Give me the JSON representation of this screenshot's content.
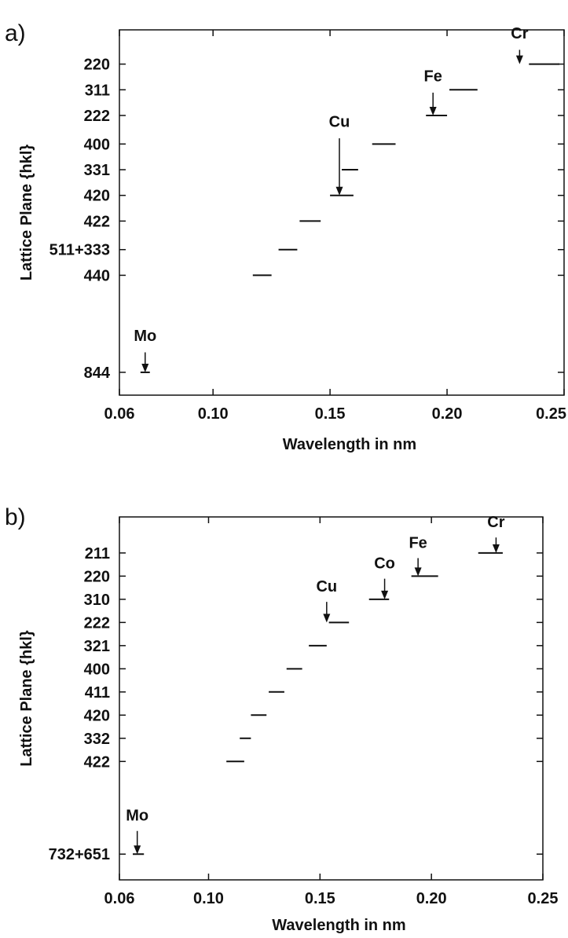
{
  "chart_data": [
    {
      "type": "scatter",
      "panel_label": "a)",
      "xlabel": "Wavelength in nm",
      "ylabel": "Lattice Plane {hkl}",
      "xlim": [
        0.06,
        0.25
      ],
      "x_ticks": [
        {
          "value": 0.06,
          "label": "0.06"
        },
        {
          "value": 0.1,
          "label": "0.10"
        },
        {
          "value": 0.15,
          "label": "0.15"
        },
        {
          "value": 0.2,
          "label": "0.20"
        },
        {
          "value": 0.25,
          "label": "0.25"
        }
      ],
      "ylim": [
        -0.5,
        12.3
      ],
      "planes": [
        {
          "label": "220",
          "y": 11.1
        },
        {
          "label": "311",
          "y": 10.2
        },
        {
          "label": "222",
          "y": 9.3
        },
        {
          "label": "400",
          "y": 8.3
        },
        {
          "label": "331",
          "y": 7.4
        },
        {
          "label": "420",
          "y": 6.5
        },
        {
          "label": "422",
          "y": 5.6
        },
        {
          "label": "511+333",
          "y": 4.6
        },
        {
          "label": "440",
          "y": 3.7
        },
        {
          "label": "844",
          "y": 0.3
        }
      ],
      "segments": [
        {
          "x1": 0.235,
          "x2": 0.248,
          "y": 11.1
        },
        {
          "x1": 0.201,
          "x2": 0.213,
          "y": 10.2
        },
        {
          "x1": 0.191,
          "x2": 0.2,
          "y": 9.3
        },
        {
          "x1": 0.168,
          "x2": 0.178,
          "y": 8.3
        },
        {
          "x1": 0.155,
          "x2": 0.162,
          "y": 7.4
        },
        {
          "x1": 0.15,
          "x2": 0.16,
          "y": 6.5
        },
        {
          "x1": 0.137,
          "x2": 0.146,
          "y": 5.6
        },
        {
          "x1": 0.128,
          "x2": 0.136,
          "y": 4.6
        },
        {
          "x1": 0.117,
          "x2": 0.125,
          "y": 3.7
        },
        {
          "x1": 0.069,
          "x2": 0.073,
          "y": 0.3
        }
      ],
      "annotations": [
        {
          "text": "Cr",
          "x": 0.231,
          "label_y": 12.0,
          "arrow_from": 11.6,
          "arrow_to": 11.1
        },
        {
          "text": "Fe",
          "x": 0.194,
          "label_y": 10.5,
          "arrow_from": 10.1,
          "arrow_to": 9.3
        },
        {
          "text": "Cu",
          "x": 0.154,
          "label_y": 8.9,
          "arrow_from": 8.5,
          "arrow_to": 6.5
        },
        {
          "text": "Mo",
          "x": 0.071,
          "label_y": 1.4,
          "arrow_from": 1.0,
          "arrow_to": 0.3
        }
      ]
    },
    {
      "type": "scatter",
      "panel_label": "b)",
      "xlabel": "Wavelength in nm",
      "ylabel": "Lattice Plane {hkl}",
      "xlim": [
        0.06,
        0.25
      ],
      "x_ticks": [
        {
          "value": 0.06,
          "label": "0.06"
        },
        {
          "value": 0.1,
          "label": "0.10"
        },
        {
          "value": 0.15,
          "label": "0.15"
        },
        {
          "value": 0.2,
          "label": "0.20"
        },
        {
          "value": 0.25,
          "label": "0.25"
        }
      ],
      "ylim": [
        -0.5,
        13.6
      ],
      "planes": [
        {
          "label": "211",
          "y": 12.2
        },
        {
          "label": "220",
          "y": 11.3
        },
        {
          "label": "310",
          "y": 10.4
        },
        {
          "label": "222",
          "y": 9.5
        },
        {
          "label": "321",
          "y": 8.6
        },
        {
          "label": "400",
          "y": 7.7
        },
        {
          "label": "411",
          "y": 6.8
        },
        {
          "label": "420",
          "y": 5.9
        },
        {
          "label": "332",
          "y": 5.0
        },
        {
          "label": "422",
          "y": 4.1
        },
        {
          "label": "732+651",
          "y": 0.5
        }
      ],
      "segments": [
        {
          "x1": 0.221,
          "x2": 0.232,
          "y": 12.2
        },
        {
          "x1": 0.191,
          "x2": 0.203,
          "y": 11.3
        },
        {
          "x1": 0.172,
          "x2": 0.181,
          "y": 10.4
        },
        {
          "x1": 0.154,
          "x2": 0.163,
          "y": 9.5
        },
        {
          "x1": 0.145,
          "x2": 0.153,
          "y": 8.6
        },
        {
          "x1": 0.135,
          "x2": 0.142,
          "y": 7.7
        },
        {
          "x1": 0.127,
          "x2": 0.134,
          "y": 6.8
        },
        {
          "x1": 0.119,
          "x2": 0.126,
          "y": 5.9
        },
        {
          "x1": 0.114,
          "x2": 0.119,
          "y": 5.0
        },
        {
          "x1": 0.108,
          "x2": 0.116,
          "y": 4.1
        },
        {
          "x1": 0.066,
          "x2": 0.071,
          "y": 0.5
        }
      ],
      "annotations": [
        {
          "text": "Cr",
          "x": 0.229,
          "label_y": 13.2,
          "arrow_from": 12.8,
          "arrow_to": 12.2
        },
        {
          "text": "Fe",
          "x": 0.194,
          "label_y": 12.4,
          "arrow_from": 12.0,
          "arrow_to": 11.3
        },
        {
          "text": "Co",
          "x": 0.179,
          "label_y": 11.6,
          "arrow_from": 11.2,
          "arrow_to": 10.4
        },
        {
          "text": "Cu",
          "x": 0.153,
          "label_y": 10.7,
          "arrow_from": 10.3,
          "arrow_to": 9.5
        },
        {
          "text": "Mo",
          "x": 0.068,
          "label_y": 1.8,
          "arrow_from": 1.4,
          "arrow_to": 0.5
        }
      ]
    }
  ]
}
